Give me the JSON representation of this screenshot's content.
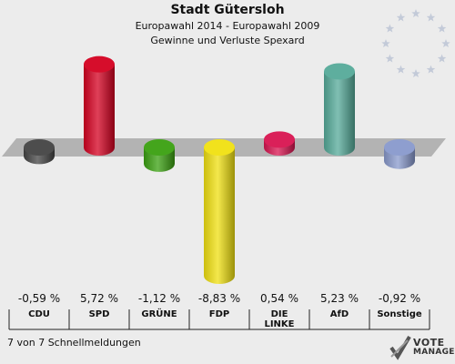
{
  "header": {
    "title": "Stadt Gütersloh",
    "subtitle": "Europawahl 2014 - Europawahl 2009",
    "subtitle2": "Gewinne und Verluste Spexard"
  },
  "footer": {
    "note": "7 von 7 Schnellmeldungen"
  },
  "logo": {
    "line1": "VOTE",
    "line2": "MANAGER"
  },
  "chart_data": {
    "type": "bar",
    "title": "Gewinne und Verluste Spexard",
    "categories": [
      "CDU",
      "SPD",
      "GRÜNE",
      "FDP",
      "DIE LINKE",
      "AfD",
      "Sonstige"
    ],
    "category_lines": [
      [
        "CDU"
      ],
      [
        "SPD"
      ],
      [
        "GRÜNE"
      ],
      [
        "FDP"
      ],
      [
        "DIE",
        "LINKE"
      ],
      [
        "AfD"
      ],
      [
        "Sonstige"
      ]
    ],
    "values": [
      -0.59,
      5.72,
      -1.12,
      -8.83,
      0.54,
      5.23,
      -0.92
    ],
    "value_labels": [
      "-0,59 %",
      "5,72 %",
      "-1,12 %",
      "-8,83 %",
      "0,54 %",
      "5,23 %",
      "-0,92 %"
    ],
    "colors": [
      "#444444",
      "#d40020",
      "#3aa010",
      "#f0e010",
      "#d81450",
      "#55aa99",
      "#8899cc"
    ],
    "baseline": 0,
    "grid": false
  }
}
